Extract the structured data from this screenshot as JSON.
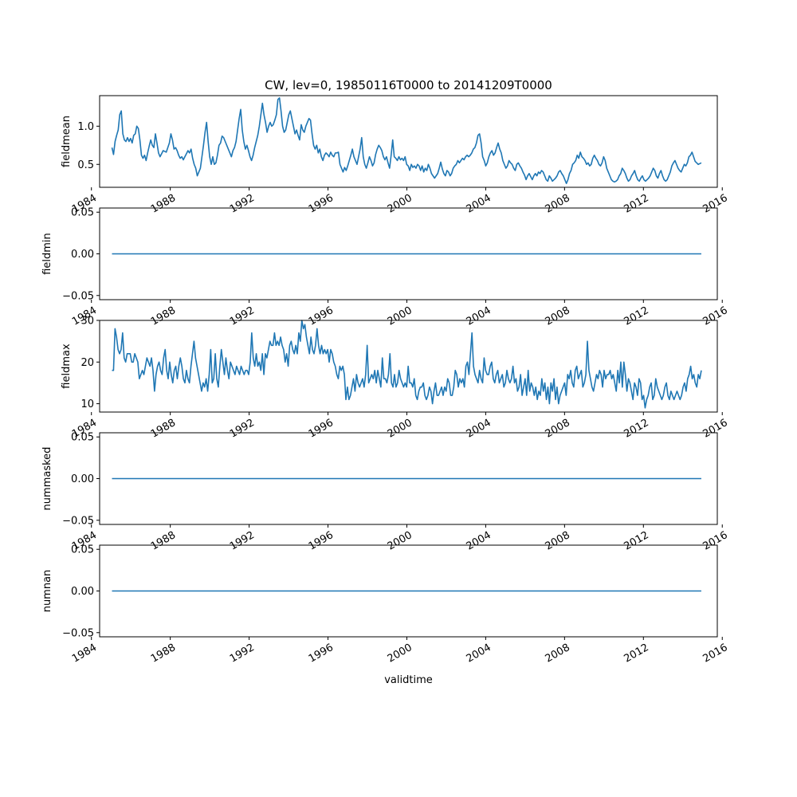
{
  "figure": {
    "title": "CW, lev=0, 19850116T0000 to 20141209T0000",
    "xlabel": "validtime"
  },
  "chart_data": [
    {
      "type": "line",
      "ylabel": "fieldmean",
      "x_range": [
        "1984-06-01",
        "2015-10-01"
      ],
      "xtick_labels": [
        "1984",
        "1988",
        "1992",
        "1996",
        "2000",
        "2004",
        "2008",
        "2012",
        "2016"
      ],
      "ylim": [
        0.2,
        1.4
      ],
      "ytick_values": [
        0.5,
        1.0
      ],
      "ytick_labels": [
        "0.5",
        "1.0"
      ],
      "series": [
        {
          "x_start": "1985-01-16",
          "x_end": "2014-12-09",
          "values": [
            0.72,
            0.63,
            0.8,
            0.88,
            0.95,
            1.15,
            1.2,
            0.9,
            0.82,
            0.8,
            0.85,
            0.8,
            0.84,
            0.78,
            0.88,
            0.9,
            1.0,
            0.97,
            0.82,
            0.62,
            0.58,
            0.62,
            0.55,
            0.65,
            0.74,
            0.82,
            0.75,
            0.72,
            0.9,
            0.78,
            0.65,
            0.6,
            0.64,
            0.68,
            0.67,
            0.66,
            0.72,
            0.78,
            0.9,
            0.82,
            0.7,
            0.72,
            0.68,
            0.62,
            0.58,
            0.6,
            0.56,
            0.6,
            0.64,
            0.68,
            0.65,
            0.7,
            0.58,
            0.5,
            0.45,
            0.35,
            0.4,
            0.45,
            0.6,
            0.75,
            0.92,
            1.05,
            0.8,
            0.6,
            0.5,
            0.6,
            0.5,
            0.52,
            0.62,
            0.75,
            0.78,
            0.87,
            0.85,
            0.8,
            0.75,
            0.7,
            0.65,
            0.6,
            0.68,
            0.72,
            0.8,
            0.95,
            1.1,
            1.22,
            0.95,
            0.8,
            0.7,
            0.75,
            0.68,
            0.6,
            0.55,
            0.62,
            0.72,
            0.8,
            0.88,
            1.0,
            1.15,
            1.3,
            1.15,
            1.05,
            0.92,
            1.0,
            1.05,
            1.0,
            1.02,
            1.08,
            1.15,
            1.35,
            1.37,
            1.2,
            1.0,
            0.92,
            0.95,
            1.05,
            1.15,
            1.2,
            1.1,
            1.0,
            0.9,
            0.95,
            0.88,
            0.82,
            1.02,
            0.95,
            0.92,
            1.0,
            1.05,
            1.1,
            1.08,
            0.9,
            0.75,
            0.7,
            0.75,
            0.65,
            0.7,
            0.6,
            0.55,
            0.62,
            0.65,
            0.63,
            0.6,
            0.66,
            0.62,
            0.6,
            0.65,
            0.65,
            0.66,
            0.5,
            0.45,
            0.4,
            0.46,
            0.42,
            0.48,
            0.55,
            0.62,
            0.7,
            0.6,
            0.55,
            0.5,
            0.6,
            0.7,
            0.85,
            0.6,
            0.5,
            0.45,
            0.52,
            0.6,
            0.55,
            0.48,
            0.52,
            0.63,
            0.7,
            0.75,
            0.72,
            0.68,
            0.6,
            0.56,
            0.6,
            0.52,
            0.45,
            0.62,
            0.82,
            0.6,
            0.58,
            0.55,
            0.6,
            0.56,
            0.58,
            0.55,
            0.6,
            0.5,
            0.48,
            0.42,
            0.5,
            0.46,
            0.48,
            0.45,
            0.5,
            0.48,
            0.42,
            0.48,
            0.4,
            0.45,
            0.42,
            0.5,
            0.45,
            0.38,
            0.35,
            0.32,
            0.35,
            0.38,
            0.45,
            0.53,
            0.44,
            0.38,
            0.35,
            0.42,
            0.4,
            0.35,
            0.38,
            0.45,
            0.48,
            0.5,
            0.55,
            0.52,
            0.55,
            0.58,
            0.56,
            0.6,
            0.62,
            0.6,
            0.62,
            0.65,
            0.7,
            0.72,
            0.78,
            0.88,
            0.9,
            0.78,
            0.6,
            0.55,
            0.48,
            0.52,
            0.6,
            0.65,
            0.68,
            0.62,
            0.65,
            0.72,
            0.78,
            0.7,
            0.65,
            0.55,
            0.5,
            0.45,
            0.48,
            0.55,
            0.52,
            0.5,
            0.45,
            0.42,
            0.5,
            0.52,
            0.48,
            0.45,
            0.4,
            0.36,
            0.3,
            0.35,
            0.38,
            0.34,
            0.3,
            0.35,
            0.38,
            0.35,
            0.4,
            0.38,
            0.42,
            0.4,
            0.35,
            0.3,
            0.28,
            0.35,
            0.32,
            0.28,
            0.3,
            0.32,
            0.35,
            0.4,
            0.42,
            0.38,
            0.35,
            0.3,
            0.25,
            0.3,
            0.38,
            0.42,
            0.5,
            0.52,
            0.55,
            0.62,
            0.58,
            0.66,
            0.6,
            0.58,
            0.55,
            0.5,
            0.52,
            0.48,
            0.5,
            0.58,
            0.62,
            0.58,
            0.55,
            0.5,
            0.48,
            0.52,
            0.6,
            0.55,
            0.45,
            0.4,
            0.35,
            0.3,
            0.28,
            0.27,
            0.28,
            0.3,
            0.35,
            0.38,
            0.45,
            0.42,
            0.38,
            0.32,
            0.28,
            0.3,
            0.35,
            0.38,
            0.42,
            0.35,
            0.3,
            0.28,
            0.32,
            0.35,
            0.3,
            0.28,
            0.3,
            0.32,
            0.35,
            0.4,
            0.45,
            0.42,
            0.35,
            0.32,
            0.38,
            0.42,
            0.35,
            0.3,
            0.28,
            0.3,
            0.35,
            0.4,
            0.48,
            0.52,
            0.55,
            0.5,
            0.45,
            0.42,
            0.4,
            0.45,
            0.5,
            0.48,
            0.52,
            0.6,
            0.62,
            0.66,
            0.6,
            0.54,
            0.52,
            0.5,
            0.51,
            0.52
          ]
        }
      ]
    },
    {
      "type": "line",
      "ylabel": "fieldmin",
      "x_range": [
        "1984-06-01",
        "2015-10-01"
      ],
      "xtick_labels": [
        "1984",
        "1988",
        "1992",
        "1996",
        "2000",
        "2004",
        "2008",
        "2012",
        "2016"
      ],
      "ylim": [
        -0.055,
        0.055
      ],
      "ytick_values": [
        -0.05,
        0.0,
        0.05
      ],
      "ytick_labels": [
        "−0.05",
        "0.00",
        "0.05"
      ],
      "series": [
        {
          "x_start": "1985-01-16",
          "x_end": "2014-12-09",
          "constant": 0.0
        }
      ]
    },
    {
      "type": "line",
      "ylabel": "fieldmax",
      "x_range": [
        "1984-06-01",
        "2015-10-01"
      ],
      "xtick_labels": [
        "1984",
        "1988",
        "1992",
        "1996",
        "2000",
        "2004",
        "2008",
        "2012",
        "2016"
      ],
      "ylim": [
        8,
        30
      ],
      "ytick_values": [
        10,
        20,
        30
      ],
      "ytick_labels": [
        "10",
        "20",
        "30"
      ],
      "series": [
        {
          "x_start": "1985-01-16",
          "x_end": "2014-12-09",
          "values": [
            18,
            18,
            28,
            26,
            23,
            22,
            23,
            27,
            21,
            20,
            22,
            22,
            22,
            20,
            20,
            22,
            21,
            20,
            16,
            17,
            18,
            17,
            19,
            21,
            20,
            19,
            21,
            18,
            13,
            17,
            19,
            20,
            18,
            17,
            21,
            23,
            18,
            16,
            20,
            17,
            15,
            18,
            19,
            16,
            19,
            21,
            19,
            16,
            15,
            18,
            16,
            15,
            19,
            22,
            25,
            21,
            19,
            17,
            15,
            13,
            15,
            14,
            16,
            13,
            17,
            23,
            15,
            16,
            22,
            16,
            14,
            19,
            23,
            20,
            17,
            21,
            18,
            16,
            20,
            19,
            18,
            17,
            19,
            18,
            17,
            19,
            18,
            17,
            18,
            18,
            17,
            20,
            27,
            21,
            19,
            22,
            19,
            20,
            18,
            22,
            17,
            22,
            21,
            23,
            25,
            24,
            24,
            27,
            24,
            25,
            24,
            26,
            24,
            23,
            20,
            22,
            19,
            24,
            25,
            23,
            22,
            24,
            22,
            27,
            25,
            30,
            28,
            29,
            26,
            24,
            22,
            26,
            23,
            22,
            24,
            28,
            24,
            22,
            24,
            22,
            23,
            22,
            23,
            20,
            23,
            22,
            20,
            19,
            17,
            16,
            19,
            18,
            19,
            17,
            11,
            14,
            11,
            12,
            14,
            16,
            13,
            17,
            15,
            14,
            15,
            16,
            14,
            17,
            24,
            15,
            16,
            17,
            16,
            18,
            15,
            18,
            16,
            14,
            21,
            16,
            16,
            15,
            17,
            22,
            15,
            14,
            17,
            14,
            15,
            18,
            16,
            15,
            14,
            15,
            14,
            19,
            15,
            15,
            14,
            16,
            12,
            11,
            13,
            14,
            14,
            15,
            12,
            11,
            12,
            14,
            13,
            10,
            13,
            15,
            12,
            12,
            13,
            14,
            12,
            14,
            13,
            16,
            15,
            12,
            12,
            14,
            18,
            17,
            14,
            16,
            15,
            16,
            14,
            19,
            20,
            17,
            22,
            27,
            19,
            17,
            16,
            15,
            18,
            16,
            15,
            21,
            18,
            17,
            17,
            19,
            20,
            16,
            15,
            17,
            18,
            15,
            16,
            17,
            14,
            15,
            18,
            16,
            15,
            16,
            19,
            15,
            16,
            13,
            14,
            17,
            12,
            14,
            16,
            12,
            18,
            13,
            15,
            14,
            12,
            14,
            11,
            13,
            12,
            16,
            13,
            15,
            11,
            14,
            10,
            15,
            13,
            16,
            11,
            14,
            10,
            12,
            13,
            14,
            15,
            12,
            17,
            16,
            18,
            15,
            14,
            18,
            19,
            16,
            17,
            18,
            14,
            15,
            17,
            25,
            18,
            16,
            14,
            13,
            15,
            17,
            16,
            18,
            17,
            14,
            18,
            16,
            17,
            17,
            18,
            16,
            17,
            15,
            13,
            18,
            15,
            20,
            14,
            20,
            17,
            13,
            16,
            15,
            13,
            11,
            15,
            14,
            12,
            16,
            15,
            11,
            12,
            9,
            11,
            12,
            14,
            15,
            11,
            12,
            16,
            14,
            13,
            12,
            11,
            12,
            14,
            15,
            12,
            11,
            13,
            12,
            11,
            12,
            13,
            12,
            11,
            12,
            14,
            15,
            13,
            16,
            17,
            19,
            16,
            17,
            15,
            14,
            17,
            16,
            18
          ]
        }
      ]
    },
    {
      "type": "line",
      "ylabel": "nummasked",
      "x_range": [
        "1984-06-01",
        "2015-10-01"
      ],
      "xtick_labels": [
        "1984",
        "1988",
        "1992",
        "1996",
        "2000",
        "2004",
        "2008",
        "2012",
        "2016"
      ],
      "ylim": [
        -0.055,
        0.055
      ],
      "ytick_values": [
        -0.05,
        0.0,
        0.05
      ],
      "ytick_labels": [
        "−0.05",
        "0.00",
        "0.05"
      ],
      "series": [
        {
          "x_start": "1985-01-16",
          "x_end": "2014-12-09",
          "constant": 0.0
        }
      ]
    },
    {
      "type": "line",
      "ylabel": "numnan",
      "x_range": [
        "1984-06-01",
        "2015-10-01"
      ],
      "xtick_labels": [
        "1984",
        "1988",
        "1992",
        "1996",
        "2000",
        "2004",
        "2008",
        "2012",
        "2016"
      ],
      "ylim": [
        -0.055,
        0.055
      ],
      "ytick_values": [
        -0.05,
        0.0,
        0.05
      ],
      "ytick_labels": [
        "−0.05",
        "0.00",
        "0.05"
      ],
      "series": [
        {
          "x_start": "1985-01-16",
          "x_end": "2014-12-09",
          "constant": 0.0
        }
      ]
    }
  ]
}
